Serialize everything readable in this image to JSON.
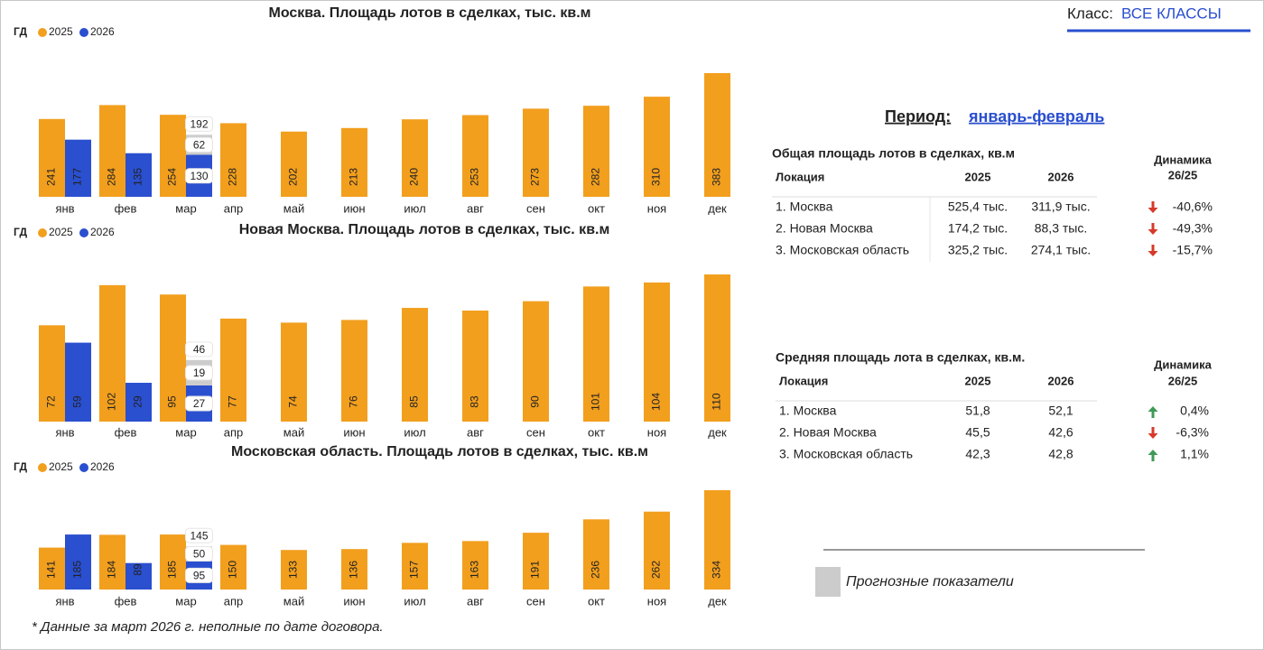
{
  "class_filter": {
    "label": "Класс:",
    "value": "ВСЕ КЛАССЫ"
  },
  "period": {
    "label": "Период:",
    "value": "январь-февраль"
  },
  "chart_data": [
    {
      "type": "bar",
      "title": "Москва. Площадь лотов в сделках, тыс. кв.м",
      "legend_title": "ГД",
      "categories": [
        "янв",
        "фев",
        "мар",
        "апр",
        "май",
        "июн",
        "июл",
        "авг",
        "сен",
        "окт",
        "ноя",
        "дек"
      ],
      "series": [
        {
          "name": "2025",
          "color": "#f29f1e",
          "values": [
            241,
            284,
            254,
            228,
            202,
            213,
            240,
            253,
            273,
            282,
            310,
            383
          ]
        },
        {
          "name": "2026",
          "color": "#2a4fcf",
          "values": [
            177,
            135,
            130,
            null,
            null,
            null,
            null,
            null,
            null,
            null,
            null,
            null
          ]
        }
      ],
      "forecast": {
        "color": "#cccccc",
        "values": [
          null,
          null,
          62,
          null,
          null,
          null,
          null,
          null,
          null,
          null,
          null,
          null
        ]
      },
      "totals": [
        null,
        null,
        192,
        null,
        null,
        null,
        null,
        null,
        null,
        null,
        null,
        null
      ]
    },
    {
      "type": "bar",
      "title": "Новая Москва. Площадь лотов в сделках, тыс. кв.м",
      "legend_title": "ГД",
      "categories": [
        "янв",
        "фев",
        "мар",
        "апр",
        "май",
        "июн",
        "июл",
        "авг",
        "сен",
        "окт",
        "ноя",
        "дек"
      ],
      "series": [
        {
          "name": "2025",
          "color": "#f29f1e",
          "values": [
            72,
            102,
            95,
            77,
            74,
            76,
            85,
            83,
            90,
            101,
            104,
            110
          ]
        },
        {
          "name": "2026",
          "color": "#2a4fcf",
          "values": [
            59,
            29,
            27,
            null,
            null,
            null,
            null,
            null,
            null,
            null,
            null,
            null
          ]
        }
      ],
      "forecast": {
        "color": "#cccccc",
        "values": [
          null,
          null,
          19,
          null,
          null,
          null,
          null,
          null,
          null,
          null,
          null,
          null
        ]
      },
      "totals": [
        null,
        null,
        46,
        null,
        null,
        null,
        null,
        null,
        null,
        null,
        null,
        null
      ]
    },
    {
      "type": "bar",
      "title": "Московская область. Площадь лотов в сделках, тыс. кв.м",
      "legend_title": "ГД",
      "categories": [
        "янв",
        "фев",
        "мар",
        "апр",
        "май",
        "июн",
        "июл",
        "авг",
        "сен",
        "окт",
        "ноя",
        "дек"
      ],
      "series": [
        {
          "name": "2025",
          "color": "#f29f1e",
          "values": [
            141,
            184,
            185,
            150,
            133,
            136,
            157,
            163,
            191,
            236,
            262,
            334
          ]
        },
        {
          "name": "2026",
          "color": "#2a4fcf",
          "values": [
            185,
            89,
            95,
            null,
            null,
            null,
            null,
            null,
            null,
            null,
            null,
            null
          ]
        }
      ],
      "forecast": {
        "color": "#cccccc",
        "values": [
          null,
          null,
          50,
          null,
          null,
          null,
          null,
          null,
          null,
          null,
          null,
          null
        ]
      },
      "totals": [
        null,
        null,
        145,
        null,
        null,
        null,
        null,
        null,
        null,
        null,
        null,
        null
      ]
    }
  ],
  "tables": [
    {
      "title": "Общая площадь лотов в сделках, кв.м",
      "columns": [
        "Локация",
        "2025",
        "2026",
        "Динамика",
        "26/25"
      ],
      "rows": [
        [
          "1. Москва",
          "525,4 тыс.",
          "311,9 тыс.",
          "-40,6%"
        ],
        [
          "2. Новая Москва",
          "174,2 тыс.",
          "88,3 тыс.",
          "-49,3%"
        ],
        [
          "3. Московская область",
          "325,2 тыс.",
          "274,1 тыс.",
          "-15,7%"
        ]
      ]
    },
    {
      "title": "Средняя площадь лота в сделках, кв.м.",
      "columns": [
        "Локация",
        "2025",
        "2026",
        "Динамика",
        "26/25"
      ],
      "rows": [
        [
          "1. Москва",
          "51,8",
          "52,1",
          "0,4%"
        ],
        [
          "2. Новая Москва",
          "45,5",
          "42,6",
          "-6,3%"
        ],
        [
          "3. Московская область",
          "42,3",
          "42,8",
          "1,1%"
        ]
      ]
    }
  ],
  "forecast_legend": "Прогнозные показатели",
  "footnote": "* Данные за март 2026 г. неполные по дате договора."
}
